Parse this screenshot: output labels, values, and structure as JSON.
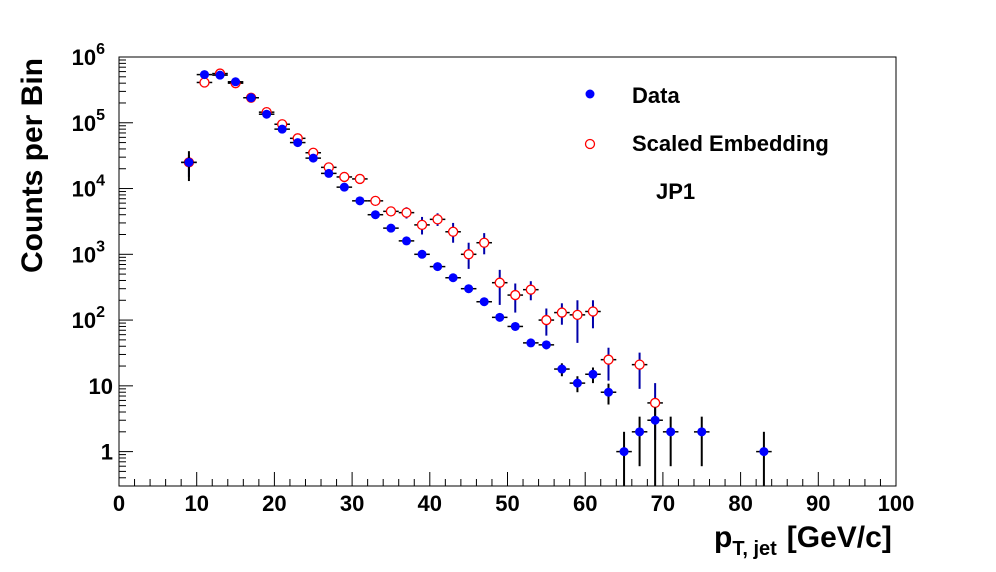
{
  "chart_data": {
    "type": "scatter",
    "xlabel": "p",
    "xlabel_sub": "T, jet",
    "xlabel_unit": "[GeV/c]",
    "ylabel": "Counts per Bin",
    "xlim": [
      0,
      100
    ],
    "ylim": [
      0.3,
      1000000
    ],
    "yscale": "log",
    "grid": false,
    "legend_position": "top-right",
    "x_tick_labels": [
      "0",
      "10",
      "20",
      "30",
      "40",
      "50",
      "60",
      "70",
      "80",
      "90",
      "100"
    ],
    "y_tick_labels": [
      {
        "value": 1,
        "base": "1",
        "exp": ""
      },
      {
        "value": 10,
        "base": "10",
        "exp": ""
      },
      {
        "value": 100,
        "base": "10",
        "exp": "2"
      },
      {
        "value": 1000,
        "base": "10",
        "exp": "3"
      },
      {
        "value": 10000,
        "base": "10",
        "exp": "4"
      },
      {
        "value": 100000,
        "base": "10",
        "exp": "5"
      },
      {
        "value": 1000000,
        "base": "10",
        "exp": "6"
      }
    ],
    "annotation": "JP1",
    "series": [
      {
        "name": "Data",
        "color": "#0000ff",
        "error_color": "#000000",
        "marker": "filled-circle",
        "points": [
          {
            "x": 9,
            "y": 25000,
            "ylo": 13000,
            "yhi": 37000
          },
          {
            "x": 11,
            "y": 540000,
            "ylo": 480000,
            "yhi": 600000
          },
          {
            "x": 13,
            "y": 530000,
            "ylo": 470000,
            "yhi": 600000
          },
          {
            "x": 15,
            "y": 420000,
            "ylo": 370000,
            "yhi": 470000
          },
          {
            "x": 17,
            "y": 240000,
            "ylo": 210000,
            "yhi": 270000
          },
          {
            "x": 19,
            "y": 135000,
            "ylo": 120000,
            "yhi": 150000
          },
          {
            "x": 21,
            "y": 80000,
            "ylo": 70000,
            "yhi": 90000
          },
          {
            "x": 23,
            "y": 50000,
            "ylo": 44000,
            "yhi": 56000
          },
          {
            "x": 25,
            "y": 29000,
            "ylo": 26000,
            "yhi": 32000
          },
          {
            "x": 27,
            "y": 17000,
            "ylo": 15000,
            "yhi": 19000
          },
          {
            "x": 29,
            "y": 10500,
            "ylo": 9500,
            "yhi": 11500
          },
          {
            "x": 31,
            "y": 6500,
            "ylo": 6000,
            "yhi": 7000
          },
          {
            "x": 33,
            "y": 4000,
            "ylo": 3700,
            "yhi": 4300
          },
          {
            "x": 35,
            "y": 2500,
            "ylo": 2300,
            "yhi": 2700
          },
          {
            "x": 37,
            "y": 1600,
            "ylo": 1480,
            "yhi": 1720
          },
          {
            "x": 39,
            "y": 1000,
            "ylo": 930,
            "yhi": 1070
          },
          {
            "x": 41,
            "y": 650,
            "ylo": 600,
            "yhi": 700
          },
          {
            "x": 43,
            "y": 440,
            "ylo": 400,
            "yhi": 480
          },
          {
            "x": 45,
            "y": 300,
            "ylo": 275,
            "yhi": 325
          },
          {
            "x": 47,
            "y": 190,
            "ylo": 172,
            "yhi": 208
          },
          {
            "x": 49,
            "y": 110,
            "ylo": 100,
            "yhi": 120
          },
          {
            "x": 51,
            "y": 80,
            "ylo": 71,
            "yhi": 89
          },
          {
            "x": 53,
            "y": 45,
            "ylo": 39,
            "yhi": 51
          },
          {
            "x": 55,
            "y": 42,
            "ylo": 36,
            "yhi": 48
          },
          {
            "x": 57,
            "y": 18,
            "ylo": 14,
            "yhi": 22
          },
          {
            "x": 59,
            "y": 11,
            "ylo": 8,
            "yhi": 14
          },
          {
            "x": 61,
            "y": 15,
            "ylo": 11,
            "yhi": 19
          },
          {
            "x": 63,
            "y": 8,
            "ylo": 5.2,
            "yhi": 10.8
          },
          {
            "x": 65,
            "y": 1,
            "ylo": 0.3,
            "yhi": 2
          },
          {
            "x": 67,
            "y": 2,
            "ylo": 0.6,
            "yhi": 3.4
          },
          {
            "x": 69,
            "y": 3,
            "ylo": 0.3,
            "yhi": 4.7
          },
          {
            "x": 71,
            "y": 2,
            "ylo": 0.6,
            "yhi": 3.4
          },
          {
            "x": 75,
            "y": 2,
            "ylo": 0.6,
            "yhi": 3.4
          },
          {
            "x": 83,
            "y": 1,
            "ylo": 0.3,
            "yhi": 2
          }
        ]
      },
      {
        "name": "Scaled Embedding",
        "color": "#ff0000",
        "error_color": "#0000aa",
        "marker": "open-circle",
        "points": [
          {
            "x": 9,
            "y": 25000,
            "ylo": 15000,
            "yhi": 32000
          },
          {
            "x": 11,
            "y": 410000,
            "ylo": 380000,
            "yhi": 440000
          },
          {
            "x": 13,
            "y": 560000,
            "ylo": 500000,
            "yhi": 630000
          },
          {
            "x": 15,
            "y": 400000,
            "ylo": 370000,
            "yhi": 430000
          },
          {
            "x": 17,
            "y": 240000,
            "ylo": 220000,
            "yhi": 260000
          },
          {
            "x": 19,
            "y": 145000,
            "ylo": 130000,
            "yhi": 160000
          },
          {
            "x": 21,
            "y": 95000,
            "ylo": 87000,
            "yhi": 103000
          },
          {
            "x": 23,
            "y": 58000,
            "ylo": 53000,
            "yhi": 63000
          },
          {
            "x": 25,
            "y": 35000,
            "ylo": 32000,
            "yhi": 38000
          },
          {
            "x": 27,
            "y": 21000,
            "ylo": 19000,
            "yhi": 23000
          },
          {
            "x": 29,
            "y": 15000,
            "ylo": 13500,
            "yhi": 16500
          },
          {
            "x": 31,
            "y": 14000,
            "ylo": 12000,
            "yhi": 16000
          },
          {
            "x": 33,
            "y": 6500,
            "ylo": 5800,
            "yhi": 7200
          },
          {
            "x": 35,
            "y": 4500,
            "ylo": 3800,
            "yhi": 5200
          },
          {
            "x": 37,
            "y": 4300,
            "ylo": 3500,
            "yhi": 5200
          },
          {
            "x": 39,
            "y": 2800,
            "ylo": 2000,
            "yhi": 3700
          },
          {
            "x": 41,
            "y": 3400,
            "ylo": 2700,
            "yhi": 4200
          },
          {
            "x": 43,
            "y": 2200,
            "ylo": 1500,
            "yhi": 3000
          },
          {
            "x": 45,
            "y": 1000,
            "ylo": 600,
            "yhi": 1500
          },
          {
            "x": 47,
            "y": 1500,
            "ylo": 1000,
            "yhi": 2100
          },
          {
            "x": 49,
            "y": 370,
            "ylo": 170,
            "yhi": 580
          },
          {
            "x": 51,
            "y": 240,
            "ylo": 130,
            "yhi": 360
          },
          {
            "x": 53,
            "y": 290,
            "ylo": 200,
            "yhi": 390
          },
          {
            "x": 55,
            "y": 100,
            "ylo": 58,
            "yhi": 150
          },
          {
            "x": 57,
            "y": 130,
            "ylo": 85,
            "yhi": 180
          },
          {
            "x": 59,
            "y": 120,
            "ylo": 45,
            "yhi": 200
          },
          {
            "x": 61,
            "y": 135,
            "ylo": 75,
            "yhi": 200
          },
          {
            "x": 63,
            "y": 25,
            "ylo": 12,
            "yhi": 38
          },
          {
            "x": 67,
            "y": 21,
            "ylo": 9,
            "yhi": 32
          },
          {
            "x": 69,
            "y": 5.5,
            "ylo": 1.5,
            "yhi": 11
          }
        ]
      }
    ]
  }
}
